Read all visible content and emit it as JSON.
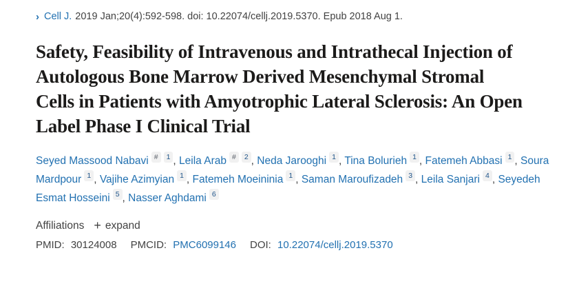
{
  "citation": {
    "chevron": "›",
    "journal": "Cell J.",
    "rest": "2019 Jan;20(4):592-598. doi: 10.22074/cellj.2019.5370. Epub 2018 Aug 1."
  },
  "title": "Safety, Feasibility of Intravenous and Intrathecal Injection of Autologous Bone Marrow Derived Mesenchymal Stromal Cells in Patients with Amyotrophic Lateral Sclerosis: An Open Label Phase I Clinical Trial",
  "authors": [
    {
      "name": "Seyed Massood Nabavi",
      "sups": [
        "#",
        "1"
      ]
    },
    {
      "name": "Leila Arab",
      "sups": [
        "#",
        "2"
      ]
    },
    {
      "name": "Neda Jarooghi",
      "sups": [
        "1"
      ]
    },
    {
      "name": "Tina Bolurieh",
      "sups": [
        "1"
      ]
    },
    {
      "name": "Fatemeh Abbasi",
      "sups": [
        "1"
      ]
    },
    {
      "name": "Soura Mardpour",
      "sups": [
        "1"
      ]
    },
    {
      "name": "Vajihe Azimyian",
      "sups": [
        "1"
      ]
    },
    {
      "name": "Fatemeh Moeininia",
      "sups": [
        "1"
      ]
    },
    {
      "name": "Saman Maroufizadeh",
      "sups": [
        "3"
      ]
    },
    {
      "name": "Leila Sanjari",
      "sups": [
        "4"
      ]
    },
    {
      "name": "Seyedeh Esmat Hosseini",
      "sups": [
        "5"
      ]
    },
    {
      "name": "Nasser Aghdami",
      "sups": [
        "6"
      ]
    }
  ],
  "affiliations": {
    "label": "Affiliations",
    "plus_icon": "+",
    "expand_label": "expand"
  },
  "identifiers": {
    "pmid_label": "PMID:",
    "pmid_value": "30124008",
    "pmcid_label": "PMCID:",
    "pmcid_value": "PMC6099146",
    "doi_label": "DOI:",
    "doi_value": "10.22074/cellj.2019.5370"
  },
  "colors": {
    "link_blue": "#2271b1",
    "title_text": "#1c1b1a",
    "body_text": "#424242",
    "badge_bg": "#f1f1f1",
    "badge_number": "#20558a",
    "badge_hash": "#5b616b"
  }
}
